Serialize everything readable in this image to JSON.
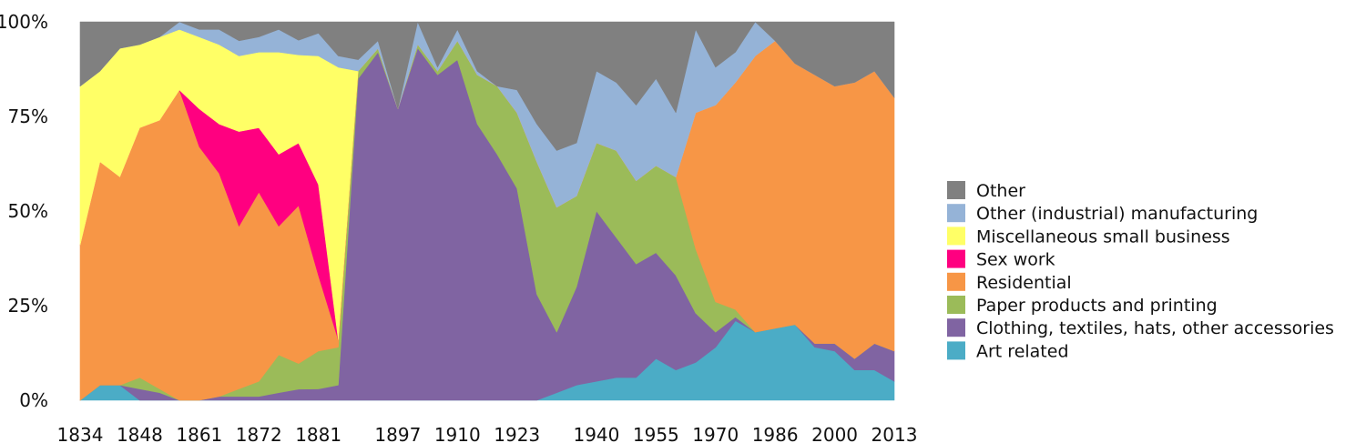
{
  "chart_data": {
    "type": "area",
    "stacked": "percent",
    "title": "",
    "xlabel": "",
    "ylabel": "",
    "x_tick_labels": [
      "1834",
      "1848",
      "1861",
      "1872",
      "1881",
      "1897",
      "1910",
      "1923",
      "1940",
      "1955",
      "1970",
      "1986",
      "2000",
      "2013"
    ],
    "y_tick_labels": [
      "0%",
      "25%",
      "50%",
      "75%",
      "100%"
    ],
    "ylim": [
      0,
      100
    ],
    "legend_position": "right",
    "legend_order": [
      "other",
      "other_manufacturing",
      "misc_small_business",
      "sex_work",
      "residential",
      "paper_printing",
      "clothing",
      "art"
    ],
    "categories": [
      "1834",
      "1839",
      "1843",
      "1848",
      "1852",
      "1857",
      "1861",
      "1865",
      "1868",
      "1872",
      "1876",
      "1879",
      "1881",
      "1884",
      "1888",
      "1893",
      "1897",
      "1902",
      "1906",
      "1910",
      "1914",
      "1918",
      "1923",
      "1927",
      "1932",
      "1936",
      "1940",
      "1945",
      "1950",
      "1955",
      "1960",
      "1965",
      "1970",
      "1975",
      "1980",
      "1986",
      "1992",
      "1996",
      "2000",
      "2004",
      "2008",
      "2013"
    ],
    "series": [
      {
        "key": "art",
        "name": "Art related",
        "color": "#4bacc6",
        "values": [
          0,
          4,
          4,
          0,
          0,
          0,
          0,
          0,
          0,
          0,
          0,
          0,
          0,
          0,
          0,
          0,
          0,
          0,
          0,
          0,
          0,
          0,
          0,
          0,
          2,
          4,
          5,
          6,
          6,
          11,
          8,
          10,
          14,
          21,
          18,
          19,
          20,
          14,
          13,
          8,
          8,
          5
        ]
      },
      {
        "key": "clothing",
        "name": "Clothing, textiles, hats, other accessories",
        "color": "#8064a2",
        "values": [
          0,
          0,
          0,
          3,
          2,
          0,
          0,
          1,
          1,
          1,
          2,
          3,
          3,
          4,
          85,
          92,
          77,
          94,
          86,
          90,
          73,
          65,
          56,
          28,
          16,
          26,
          45,
          37,
          30,
          28,
          25,
          13,
          4,
          1,
          0,
          0,
          0,
          1,
          2,
          3,
          7,
          8
        ]
      },
      {
        "key": "paper_printing",
        "name": "Paper products and printing",
        "color": "#9bbb59",
        "values": [
          0,
          0,
          0,
          3,
          1,
          0,
          0,
          0,
          2,
          4,
          10,
          7,
          10,
          10,
          2,
          1,
          0,
          1,
          1,
          5,
          13,
          18,
          20,
          35,
          33,
          24,
          18,
          23,
          22,
          23,
          26,
          17,
          8,
          2,
          0,
          0,
          0,
          0,
          0,
          0,
          0,
          0
        ]
      },
      {
        "key": "residential",
        "name": "Residential",
        "color": "#f79646",
        "values": [
          41,
          59,
          55,
          66,
          71,
          82,
          67,
          59,
          43,
          50,
          34,
          43,
          20,
          2,
          0,
          0,
          0,
          0,
          0,
          0,
          0,
          0,
          0,
          0,
          0,
          0,
          0,
          0,
          0,
          0,
          0,
          36,
          52,
          60,
          73,
          76,
          69,
          71,
          68,
          73,
          72,
          67
        ]
      },
      {
        "key": "sex_work",
        "name": "Sex work",
        "color": "#ff0080",
        "values": [
          0,
          0,
          0,
          0,
          0,
          0,
          10,
          13,
          25,
          17,
          19,
          17,
          24,
          0,
          0,
          0,
          0,
          0,
          0,
          0,
          0,
          0,
          0,
          0,
          0,
          0,
          0,
          0,
          0,
          0,
          0,
          0,
          0,
          0,
          0,
          0,
          0,
          0,
          0,
          0,
          0,
          0
        ]
      },
      {
        "key": "misc_small_business",
        "name": "Miscellaneous small business",
        "color": "#ffff66",
        "values": [
          42,
          24,
          34,
          22,
          22,
          16,
          19,
          21,
          20,
          20,
          27,
          24,
          34,
          72,
          0,
          0,
          0,
          0,
          0,
          0,
          0,
          0,
          0,
          0,
          0,
          0,
          0,
          0,
          0,
          0,
          0,
          0,
          0,
          0,
          0,
          0,
          0,
          0,
          0,
          0,
          0,
          0
        ]
      },
      {
        "key": "other_manufacturing",
        "name": "Other (industrial) manufacturing",
        "color": "#95b3d7",
        "values": [
          0,
          0,
          0,
          0,
          0,
          2,
          2,
          4,
          4,
          4,
          6,
          4,
          6,
          3,
          3,
          2,
          0,
          6,
          1,
          3,
          1,
          0,
          6,
          10,
          15,
          14,
          19,
          18,
          20,
          23,
          17,
          22,
          10,
          8,
          9,
          0,
          0,
          0,
          0,
          0,
          0,
          0
        ]
      },
      {
        "key": "other",
        "name": "Other",
        "color": "#808080",
        "values": [
          17,
          13,
          7,
          6,
          4,
          0,
          2,
          2,
          5,
          4,
          2,
          5,
          3,
          9,
          10,
          5,
          23,
          0,
          12,
          2,
          13,
          17,
          18,
          27,
          34,
          32,
          13,
          16,
          22,
          15,
          24,
          2,
          12,
          8,
          0,
          5,
          11,
          14,
          17,
          16,
          13,
          20
        ]
      }
    ]
  }
}
